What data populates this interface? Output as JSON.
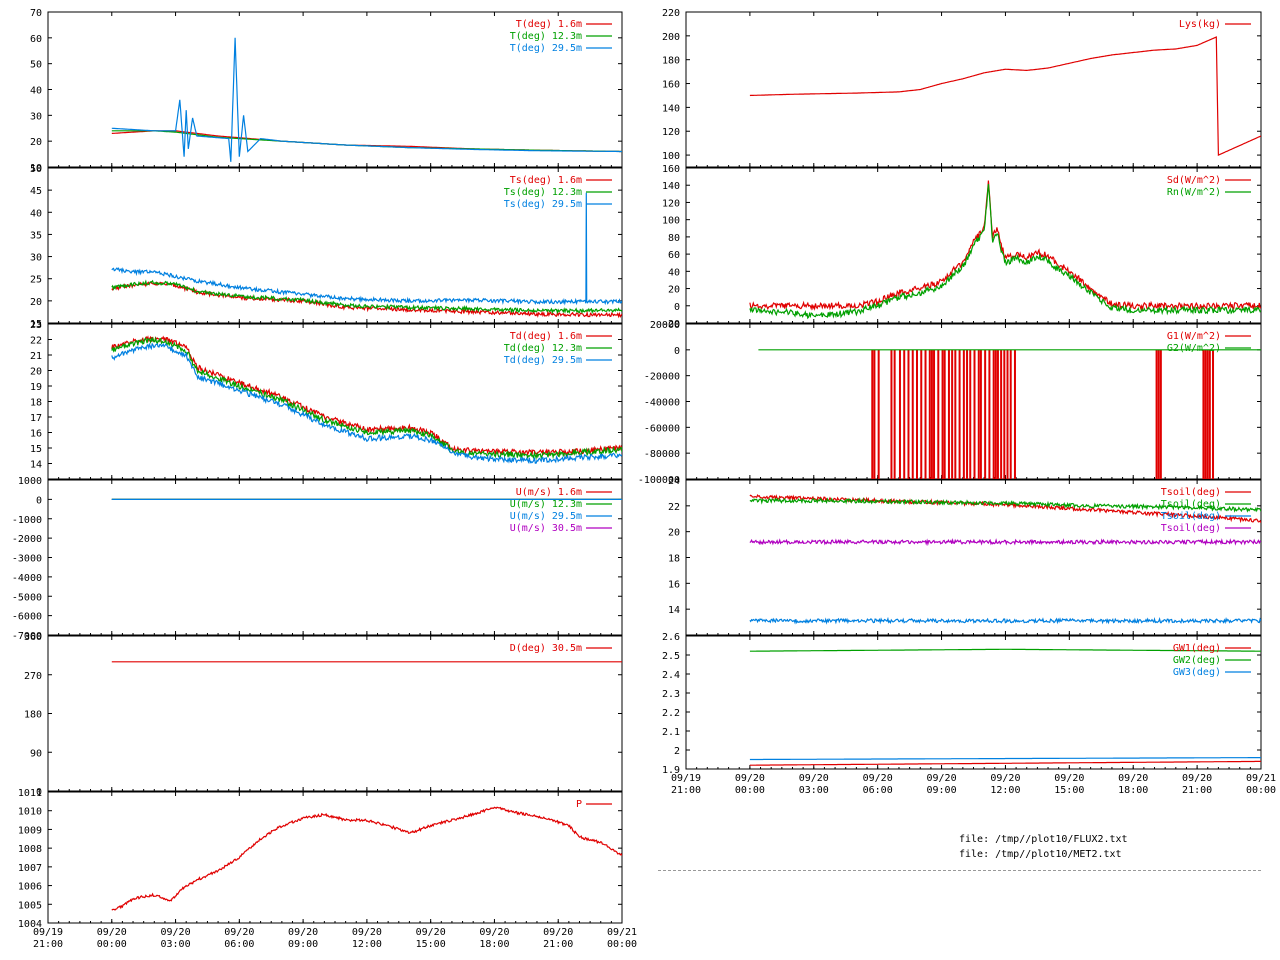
{
  "files": [
    "file: /tmp//plot10/FLUX2.txt",
    "file: /tmp//plot10/MET2.txt"
  ],
  "colors": {
    "red": "#e00000",
    "green": "#00a000",
    "blue": "#0080e0",
    "magenta": "#b000c0"
  },
  "chart_data": [
    {
      "id": "T",
      "type": "line",
      "y_ticks": [
        "10",
        "20",
        "30",
        "40",
        "50",
        "60",
        "70"
      ],
      "ylim": [
        10,
        70
      ],
      "series": [
        {
          "name": "T(deg)  1.6m",
          "color": "#e00000",
          "x": [
            0,
            2,
            3,
            5,
            8,
            11,
            14,
            17,
            20,
            24
          ],
          "values": [
            23,
            24,
            24,
            22,
            20,
            18.5,
            18,
            17,
            16.5,
            16
          ]
        },
        {
          "name": "T(deg) 12.3m",
          "color": "#00a000",
          "x": [
            0,
            2,
            3,
            5,
            8,
            11,
            14,
            17,
            20,
            24
          ],
          "values": [
            24,
            24,
            23.5,
            21.5,
            20,
            18.5,
            17.5,
            17,
            16.5,
            16
          ]
        },
        {
          "name": "T(deg) 29.5m",
          "color": "#0080e0",
          "x": [
            0,
            2,
            3,
            3.2,
            3.4,
            3.5,
            3.6,
            3.8,
            4,
            5.5,
            5.6,
            5.8,
            6,
            6.2,
            6.4,
            7,
            8,
            11,
            14,
            17,
            20,
            24
          ],
          "values": [
            25,
            24,
            24,
            36,
            14,
            32,
            17,
            29,
            22,
            21,
            12,
            60,
            14,
            30,
            16,
            21,
            20,
            18.5,
            17.5,
            16.8,
            16.3,
            16
          ]
        }
      ]
    },
    {
      "id": "Ts",
      "type": "line",
      "y_ticks": [
        "15",
        "20",
        "25",
        "30",
        "35",
        "40",
        "45",
        "50"
      ],
      "ylim": [
        15,
        50
      ],
      "series": [
        {
          "name": "Ts(deg)  1.6m",
          "color": "#e00000",
          "x": [
            0,
            1,
            2,
            3,
            4,
            6,
            9,
            11,
            14,
            17,
            20,
            24
          ],
          "values": [
            22.8,
            23.5,
            24,
            23.5,
            22,
            20.7,
            20,
            18.5,
            18,
            17.5,
            17,
            16.8
          ]
        },
        {
          "name": "Ts(deg) 12.3m",
          "color": "#00a000",
          "x": [
            0,
            1,
            2,
            3,
            4,
            6,
            9,
            11,
            14,
            17,
            20,
            24
          ],
          "values": [
            23,
            23.7,
            24.2,
            23.7,
            22.2,
            21,
            20.2,
            19,
            18.5,
            18.2,
            17.8,
            17.8
          ]
        },
        {
          "name": "Ts(deg) 29.5m",
          "color": "#0080e0",
          "x": [
            0,
            1,
            2,
            3,
            4,
            6,
            9,
            11,
            14,
            17,
            20,
            22.3,
            22.32,
            22.34,
            24
          ],
          "values": [
            27.2,
            26.5,
            26.5,
            25.5,
            24.5,
            23,
            21.5,
            20.5,
            20,
            20.2,
            19.8,
            19.8,
            44,
            19.8,
            19.8
          ]
        }
      ]
    },
    {
      "id": "Td",
      "type": "line",
      "y_ticks": [
        "14",
        "15",
        "16",
        "17",
        "18",
        "19",
        "20",
        "21",
        "22",
        "23"
      ],
      "ylim": [
        13,
        23
      ],
      "series": [
        {
          "name": "Td(deg)  1.6m",
          "color": "#e00000",
          "x": [
            0,
            1.5,
            2.5,
            3.5,
            4,
            6,
            8,
            10,
            12,
            14,
            15,
            16,
            17,
            18,
            20,
            22,
            24
          ],
          "values": [
            21.5,
            22,
            22,
            21.5,
            20.2,
            19.2,
            18.3,
            17,
            16.2,
            16.3,
            16,
            15,
            14.8,
            14.8,
            14.7,
            14.8,
            15
          ]
        },
        {
          "name": "Td(deg) 12.3m",
          "color": "#00a000",
          "x": [
            0,
            1.5,
            2.5,
            3.5,
            4,
            6,
            8,
            10,
            12,
            14,
            15,
            16,
            17,
            18,
            20,
            22,
            24
          ],
          "values": [
            21.3,
            21.9,
            21.9,
            21.3,
            20,
            19,
            18.1,
            16.8,
            16,
            16.1,
            15.8,
            14.9,
            14.6,
            14.6,
            14.5,
            14.7,
            14.9
          ]
        },
        {
          "name": "Td(deg) 29.5m",
          "color": "#0080e0",
          "x": [
            0,
            1.5,
            2.5,
            3.5,
            4,
            6,
            8,
            10,
            12,
            14,
            15,
            16,
            17,
            18,
            20,
            22,
            24
          ],
          "values": [
            20.8,
            21.5,
            21.6,
            21,
            19.6,
            18.7,
            17.8,
            16.5,
            15.6,
            15.8,
            15.5,
            14.7,
            14.4,
            14.3,
            14.2,
            14.4,
            14.5
          ]
        }
      ]
    },
    {
      "id": "U",
      "type": "line",
      "y_ticks": [
        "-7000",
        "-6000",
        "-5000",
        "-4000",
        "-3000",
        "-2000",
        "-1000",
        "0",
        "1000"
      ],
      "ylim": [
        -7000,
        1000
      ],
      "series": [
        {
          "name": "U(m/s)  1.6m",
          "color": "#e00000",
          "x": [
            0,
            24
          ],
          "values": [
            0,
            0
          ]
        },
        {
          "name": "U(m/s) 12.3m",
          "color": "#00a000",
          "x": [
            0,
            24
          ],
          "values": [
            0,
            0
          ]
        },
        {
          "name": "U(m/s) 29.5m",
          "color": "#0080e0",
          "x": [
            0,
            24
          ],
          "values": [
            0,
            0
          ]
        },
        {
          "name": "U(m/s) 30.5m",
          "color": "#b000c0",
          "x": [],
          "values": []
        }
      ]
    },
    {
      "id": "D",
      "type": "line",
      "y_ticks": [
        "0",
        "90",
        "180",
        "270",
        "360"
      ],
      "ylim": [
        0,
        360
      ],
      "series": [
        {
          "name": "D(deg)  30.5m",
          "color": "#e00000",
          "x": [
            0,
            24
          ],
          "values": [
            300,
            300
          ]
        }
      ]
    },
    {
      "id": "P",
      "type": "line",
      "y_ticks": [
        "1004",
        "1005",
        "1006",
        "1007",
        "1008",
        "1009",
        "1010",
        "1011"
      ],
      "ylim": [
        1004,
        1011
      ],
      "x_ticks": [
        "09/19|21:00",
        "09/20|00:00",
        "09/20|03:00",
        "09/20|06:00",
        "09/20|09:00",
        "09/20|12:00",
        "09/20|15:00",
        "09/20|18:00",
        "09/20|21:00",
        "09/21|00:00"
      ],
      "series": [
        {
          "name": "P",
          "color": "#e00000",
          "x": [
            0,
            0.5,
            1,
            2,
            2.8,
            3.3,
            4,
            5,
            6,
            7,
            8,
            9,
            10,
            11,
            12,
            13,
            14,
            15,
            16,
            17,
            18,
            19,
            20,
            21,
            21.5,
            22,
            23,
            24
          ],
          "values": [
            1004.7,
            1004.9,
            1005.3,
            1005.5,
            1005.2,
            1005.8,
            1006.3,
            1006.8,
            1007.5,
            1008.5,
            1009.2,
            1009.6,
            1009.8,
            1009.5,
            1009.5,
            1009.2,
            1008.8,
            1009.2,
            1009.5,
            1009.8,
            1010.2,
            1009.9,
            1009.7,
            1009.4,
            1009.2,
            1008.6,
            1008.3,
            1007.6
          ]
        }
      ]
    },
    {
      "id": "Lys",
      "type": "line",
      "y_ticks": [
        "100",
        "120",
        "140",
        "160",
        "180",
        "200",
        "220"
      ],
      "ylim": [
        90,
        220
      ],
      "series": [
        {
          "name": "Lys(kg)",
          "color": "#e00000",
          "x": [
            0,
            2,
            5,
            7,
            8,
            9,
            10,
            11,
            12,
            13,
            14,
            15,
            16,
            17,
            18,
            19,
            20,
            21,
            21.9,
            22,
            23,
            24
          ],
          "values": [
            150,
            151,
            152,
            153,
            155,
            160,
            164,
            169,
            172,
            171,
            173,
            177,
            181,
            184,
            186,
            188,
            189,
            192,
            199,
            100,
            108,
            116
          ]
        }
      ]
    },
    {
      "id": "Rad",
      "type": "line",
      "y_ticks": [
        "-20",
        "0",
        "20",
        "40",
        "60",
        "80",
        "100",
        "120",
        "140",
        "160"
      ],
      "ylim": [
        -20,
        160
      ],
      "series": [
        {
          "name": "Sd(W/m^2)",
          "color": "#e00000",
          "x": [
            0,
            5,
            6,
            7,
            8,
            9,
            9.5,
            10,
            10.5,
            11,
            11.2,
            11.4,
            11.6,
            11.8,
            12,
            12.5,
            13,
            13.5,
            14,
            14.5,
            15,
            16,
            17,
            18,
            24
          ],
          "values": [
            0,
            0,
            5,
            15,
            20,
            28,
            40,
            50,
            75,
            90,
            145,
            80,
            90,
            70,
            55,
            60,
            55,
            62,
            58,
            48,
            40,
            20,
            2,
            0,
            0
          ]
        },
        {
          "name": "Rn(W/m^2)",
          "color": "#00a000",
          "x": [
            0,
            2,
            3,
            4,
            5,
            6,
            7,
            8,
            9,
            9.5,
            10,
            10.5,
            11,
            11.2,
            11.4,
            11.6,
            11.8,
            12,
            12.5,
            13,
            13.5,
            14,
            14.5,
            15,
            16,
            17,
            18,
            24
          ],
          "values": [
            -5,
            -8,
            -12,
            -10,
            -7,
            0,
            10,
            15,
            22,
            35,
            45,
            70,
            85,
            140,
            75,
            85,
            65,
            50,
            55,
            50,
            58,
            52,
            42,
            35,
            15,
            -2,
            -5,
            -5
          ]
        }
      ]
    },
    {
      "id": "G",
      "type": "line",
      "y_ticks": [
        "-100000",
        "-80000",
        "-60000",
        "-40000",
        "-20000",
        "0",
        "20000"
      ],
      "ylim": [
        -100000,
        20000
      ],
      "series": [
        {
          "name": "G1(W/m^2)",
          "color": "#e00000",
          "spikes": [
            5.7,
            5.8,
            6.0,
            6.6,
            6.75,
            7.0,
            7.2,
            7.4,
            7.6,
            7.8,
            8.0,
            8.2,
            8.4,
            8.5,
            8.6,
            8.8,
            9.0,
            9.1,
            9.3,
            9.45,
            9.6,
            9.8,
            10.0,
            10.15,
            10.3,
            10.5,
            10.7,
            10.8,
            11.0,
            11.2,
            11.4,
            11.5,
            11.6,
            11.75,
            11.9,
            12.05,
            12.2,
            12.4,
            19.05,
            19.15,
            19.25,
            21.25,
            21.35,
            21.45,
            21.55,
            21.7
          ],
          "values": [
            -100000
          ]
        },
        {
          "name": "G2(W/m^2)",
          "color": "#00a000",
          "x": [
            0.4,
            24
          ],
          "values": [
            0,
            0
          ]
        }
      ]
    },
    {
      "id": "Tsoil",
      "type": "line",
      "y_ticks": [
        "14",
        "16",
        "18",
        "20",
        "22",
        "24"
      ],
      "ylim": [
        12,
        24
      ],
      "series": [
        {
          "name": "Tsoil(deg)",
          "color": "#e00000",
          "x": [
            0,
            4,
            8,
            12,
            14,
            16,
            18,
            20,
            22,
            24
          ],
          "values": [
            22.7,
            22.5,
            22.3,
            22.1,
            21.9,
            21.7,
            21.5,
            21.3,
            21.1,
            20.8
          ]
        },
        {
          "name": "Tsoil(deg)",
          "color": "#00a000",
          "x": [
            0,
            4,
            8,
            12,
            16,
            20,
            24
          ],
          "values": [
            22.4,
            22.4,
            22.3,
            22.2,
            22.0,
            21.9,
            21.7
          ]
        },
        {
          "name": "Tsoil(deg)",
          "color": "#0080e0",
          "x": [
            0,
            24
          ],
          "values": [
            13.1,
            13.1
          ]
        },
        {
          "name": "Tsoil(deg)",
          "color": "#b000c0",
          "x": [
            0,
            24
          ],
          "values": [
            19.2,
            19.2
          ]
        }
      ]
    },
    {
      "id": "GW",
      "type": "line",
      "y_ticks": [
        "1.9",
        "2",
        "2.1",
        "2.2",
        "2.3",
        "2.4",
        "2.5",
        "2.6"
      ],
      "ylim": [
        1.9,
        2.6
      ],
      "x_ticks": [
        "09/19|21:00",
        "09/20|00:00",
        "09/20|03:00",
        "09/20|06:00",
        "09/20|09:00",
        "09/20|12:00",
        "09/20|15:00",
        "09/20|18:00",
        "09/20|21:00",
        "09/21|00:00"
      ],
      "series": [
        {
          "name": "GW1(deg)",
          "color": "#e00000",
          "x": [
            0,
            24
          ],
          "values": [
            1.92,
            1.94
          ]
        },
        {
          "name": "GW2(deg)",
          "color": "#00a000",
          "x": [
            0,
            12,
            24
          ],
          "values": [
            2.52,
            2.53,
            2.52
          ]
        },
        {
          "name": "GW3(deg)",
          "color": "#0080e0",
          "x": [
            0,
            24
          ],
          "values": [
            1.95,
            1.96
          ]
        }
      ]
    }
  ]
}
